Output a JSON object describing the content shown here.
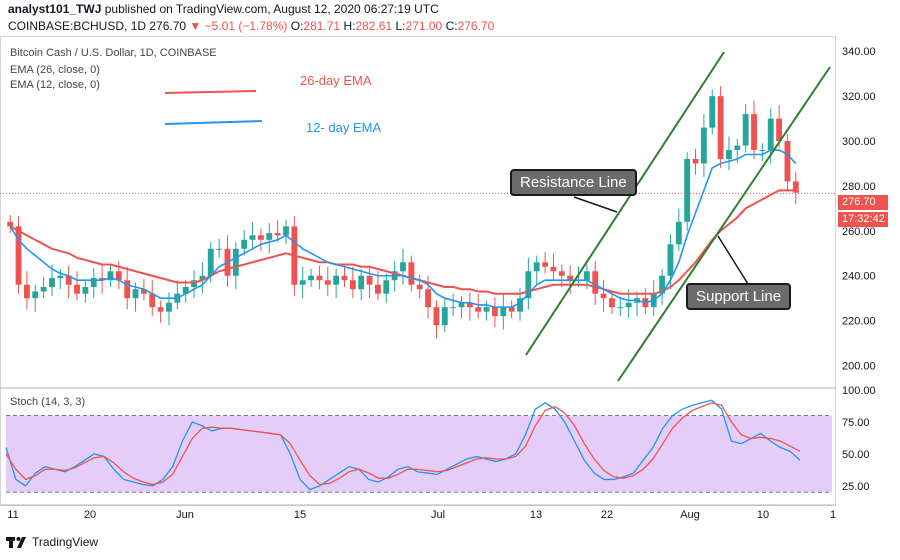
{
  "header": {
    "publisher": "analyst101_TWJ",
    "published_text": "published on TradingView.com, August 12, 2020 06:27:19 UTC",
    "symbol": "COINBASE:BCHUSD, 1D",
    "last": "276.70",
    "change": "−5.01 (−1.78%)",
    "o_label": "O:",
    "o": "281.71",
    "h_label": "H:",
    "h": "282.61",
    "l_label": "L:",
    "l": "271.00",
    "c_label": "C:",
    "c": "276.70"
  },
  "legend": {
    "title": "Bitcoin Cash / U.S. Dollar, 1D, COINBASE",
    "ema26": "EMA (26, close, 0)",
    "ema12": "EMA (12, close, 0)",
    "stoch": "Stoch (14, 3, 3)"
  },
  "annotations": {
    "ema26_label": "26-day EMA",
    "ema12_label": "12- day EMA",
    "resistance": "Resistance Line",
    "support": "Support Line"
  },
  "price_tags": {
    "price": "276.70",
    "countdown": "17:32:42"
  },
  "footer": {
    "brand": "TradingView"
  },
  "colors": {
    "up": "#26a69a",
    "down": "#ef5350",
    "ema26": "#ef5350",
    "ema12": "#2196f3",
    "trend": "#2e7d32",
    "stoch_band": "#e1c8f7"
  },
  "chart_data": {
    "type": "candlestick",
    "price_axis": {
      "min": 190,
      "max": 345,
      "ticks": [
        200,
        220,
        240,
        260,
        280,
        300,
        320,
        340
      ]
    },
    "stoch_axis": {
      "min": 10,
      "max": 100,
      "ticks": [
        "25.00",
        "50.00",
        "75.00",
        "100.00"
      ],
      "band": [
        20,
        80
      ]
    },
    "x_tick_labels": [
      "11",
      "20",
      "Jun",
      "15",
      "Jul",
      "13",
      "22",
      "Aug",
      "10",
      "1"
    ],
    "closes": [
      262,
      236,
      230,
      233,
      235,
      239,
      240,
      236,
      232,
      235,
      239,
      238,
      242,
      238,
      230,
      234,
      232,
      226,
      224,
      228,
      232,
      235,
      238,
      240,
      252,
      252,
      240,
      252,
      256,
      258,
      256,
      259,
      258,
      262,
      236,
      238,
      240,
      238,
      236,
      240,
      238,
      234,
      240,
      236,
      232,
      238,
      242,
      246,
      236,
      234,
      226,
      218,
      226,
      226,
      228,
      226,
      224,
      226,
      222,
      226,
      224,
      230,
      242,
      246,
      244,
      242,
      240,
      238,
      238,
      242,
      232,
      230,
      226,
      226,
      228,
      230,
      226,
      232,
      240,
      254,
      264,
      292,
      290,
      306,
      320,
      292,
      296,
      298,
      312,
      296,
      296,
      310,
      300,
      282,
      277
    ],
    "ema26": [
      262,
      260,
      258,
      256,
      254,
      252,
      251,
      250,
      248,
      247,
      246,
      245,
      245,
      244,
      243,
      242,
      241,
      240,
      239,
      238,
      237,
      237,
      237,
      238,
      240,
      242,
      243,
      244,
      245,
      246,
      247,
      248,
      249,
      250,
      249,
      248,
      247,
      246,
      246,
      245,
      245,
      245,
      244,
      244,
      243,
      242,
      241,
      240,
      239,
      238,
      237,
      236,
      235,
      235,
      234,
      234,
      233,
      233,
      232,
      232,
      232,
      232,
      233,
      234,
      235,
      236,
      236,
      236,
      236,
      236,
      235,
      234,
      233,
      232,
      232,
      232,
      232,
      232,
      233,
      235,
      238,
      242,
      246,
      251,
      256,
      260,
      263,
      266,
      270,
      272,
      274,
      276,
      278,
      278,
      278
    ],
    "ema12": [
      262,
      256,
      252,
      249,
      246,
      243,
      241,
      240,
      238,
      238,
      238,
      238,
      239,
      238,
      236,
      235,
      234,
      232,
      230,
      230,
      230,
      232,
      234,
      236,
      240,
      244,
      246,
      248,
      250,
      252,
      254,
      255,
      256,
      258,
      255,
      252,
      250,
      248,
      246,
      245,
      244,
      243,
      242,
      241,
      240,
      240,
      240,
      240,
      239,
      238,
      236,
      232,
      230,
      229,
      228,
      228,
      227,
      227,
      226,
      226,
      226,
      228,
      232,
      236,
      238,
      238,
      238,
      238,
      238,
      238,
      236,
      234,
      232,
      230,
      229,
      229,
      228,
      229,
      232,
      238,
      246,
      258,
      268,
      278,
      288,
      290,
      291,
      292,
      294,
      294,
      294,
      296,
      296,
      294,
      290
    ],
    "stoch_k": [
      55,
      30,
      25,
      35,
      40,
      38,
      36,
      40,
      45,
      50,
      48,
      38,
      30,
      28,
      26,
      25,
      30,
      40,
      60,
      75,
      72,
      68,
      70,
      70,
      69,
      68,
      67,
      66,
      65,
      50,
      30,
      22,
      25,
      30,
      35,
      40,
      38,
      30,
      28,
      32,
      38,
      40,
      36,
      35,
      34,
      38,
      42,
      46,
      48,
      46,
      44,
      46,
      50,
      65,
      85,
      90,
      85,
      75,
      60,
      45,
      35,
      30,
      30,
      32,
      35,
      45,
      55,
      70,
      80,
      85,
      88,
      90,
      92,
      85,
      60,
      58,
      62,
      66,
      60,
      55,
      52,
      45
    ],
    "stoch_d": [
      50,
      38,
      30,
      33,
      38,
      38,
      37,
      39,
      43,
      47,
      48,
      43,
      36,
      31,
      28,
      26,
      28,
      34,
      48,
      62,
      70,
      71,
      70,
      70,
      69,
      68,
      67,
      66,
      65,
      58,
      45,
      33,
      26,
      27,
      31,
      36,
      38,
      35,
      31,
      31,
      34,
      38,
      38,
      37,
      36,
      37,
      40,
      43,
      46,
      47,
      46,
      46,
      48,
      56,
      72,
      84,
      87,
      82,
      72,
      58,
      46,
      37,
      32,
      31,
      33,
      38,
      46,
      58,
      70,
      78,
      84,
      87,
      90,
      88,
      75,
      65,
      62,
      63,
      62,
      60,
      56,
      52
    ]
  }
}
